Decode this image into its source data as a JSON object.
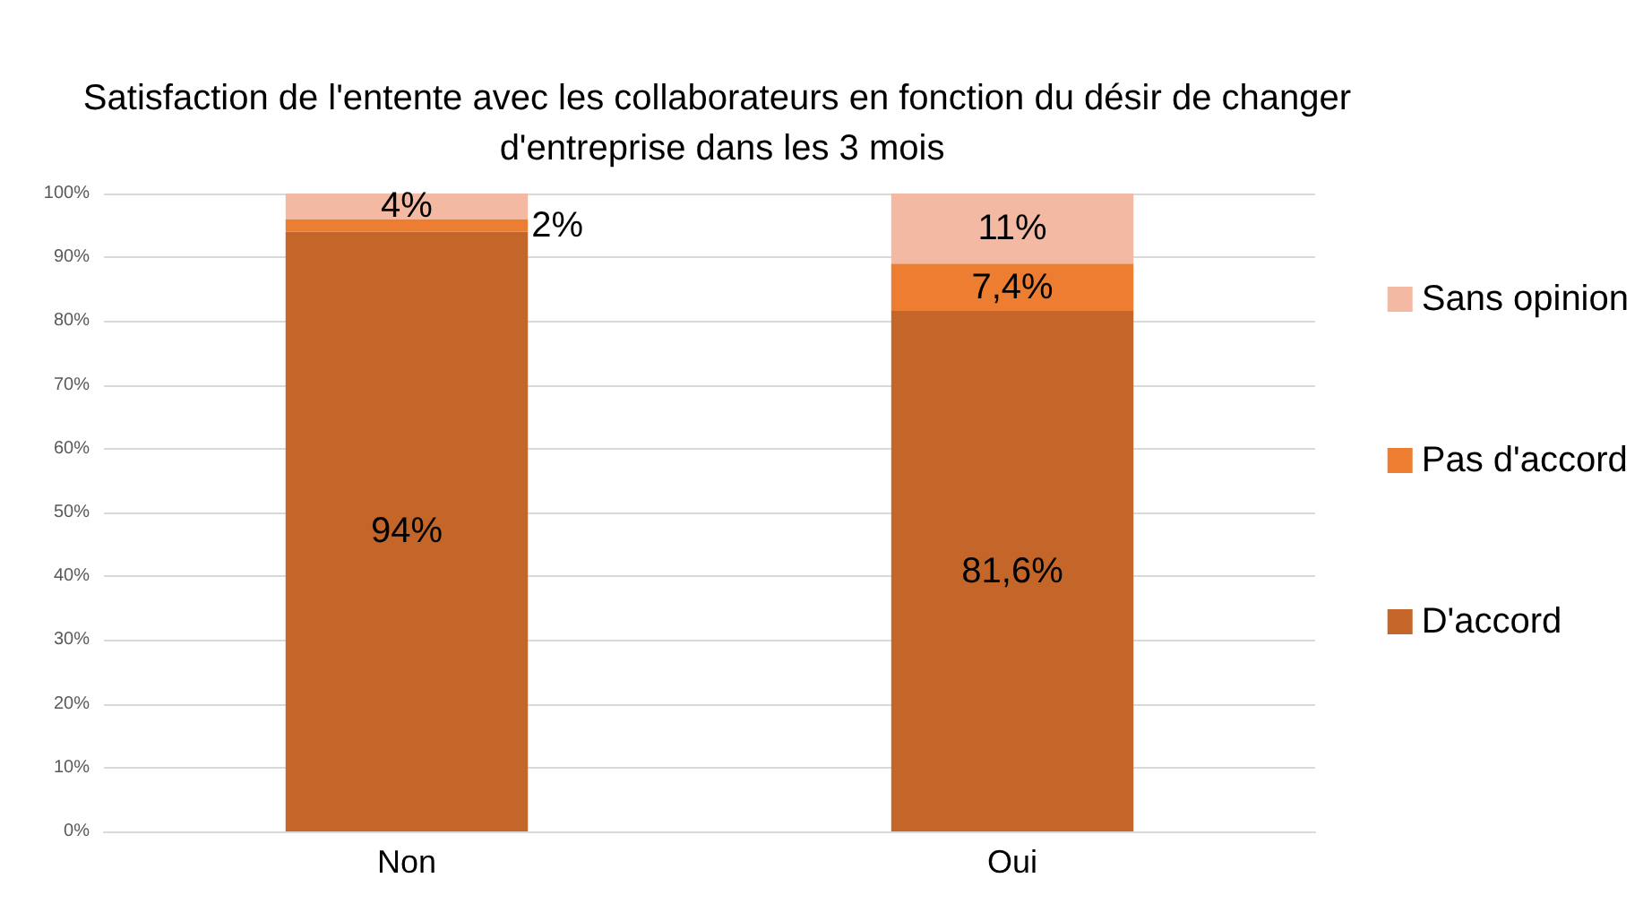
{
  "chart_data": {
    "type": "bar",
    "title": "Satisfaction de l'entente avec les collaborateurs en fonction du désir de changer d'entreprise dans les 3 mois",
    "categories": [
      "Non",
      "Oui"
    ],
    "stacked": true,
    "series": [
      {
        "name": "D'accord",
        "color": "#c4652a",
        "values": [
          94,
          81.6
        ],
        "value_labels": [
          "94%",
          "81,6%"
        ]
      },
      {
        "name": "Pas d'accord",
        "color": "#ed7d31",
        "values": [
          2,
          7.4
        ],
        "value_labels": [
          "2%",
          "7,4%"
        ]
      },
      {
        "name": "Sans opinion",
        "color": "#f4b9a3",
        "values": [
          4,
          11
        ],
        "value_labels": [
          "4%",
          "11%"
        ]
      }
    ],
    "ylim": [
      0,
      100
    ],
    "yticks": [
      {
        "value": 0,
        "label": "0%"
      },
      {
        "value": 10,
        "label": "10%"
      },
      {
        "value": 20,
        "label": "20%"
      },
      {
        "value": 30,
        "label": "30%"
      },
      {
        "value": 40,
        "label": "40%"
      },
      {
        "value": 50,
        "label": "50%"
      },
      {
        "value": 60,
        "label": "60%"
      },
      {
        "value": 70,
        "label": "70%"
      },
      {
        "value": 80,
        "label": "80%"
      },
      {
        "value": 90,
        "label": "90%"
      },
      {
        "value": 100,
        "label": "100%"
      }
    ],
    "grid": "y",
    "legend": "right"
  }
}
